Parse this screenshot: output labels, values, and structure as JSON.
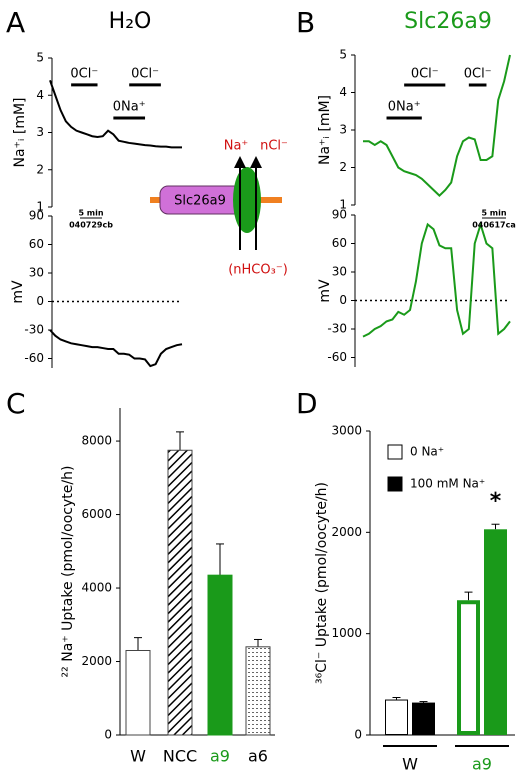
{
  "panel_labels": [
    "A",
    "B",
    "C",
    "D"
  ],
  "diagram": {
    "protein": "Slc26a9",
    "labels": [
      "Na⁺",
      "nCl⁻",
      "(nHCO₃⁻)"
    ]
  },
  "chart_data": [
    {
      "type": "line",
      "title": "H₂O",
      "ylabel": "Na⁺ᵢ [mM]",
      "ylim": [
        1,
        5
      ],
      "yticks": [
        1,
        2,
        3,
        4,
        5
      ],
      "color": "#000000",
      "values": [
        4.4,
        4.0,
        3.6,
        3.3,
        3.15,
        3.05,
        3.0,
        2.95,
        2.9,
        2.88,
        2.9,
        3.05,
        2.95,
        2.78,
        2.75,
        2.72,
        2.7,
        2.68,
        2.66,
        2.65,
        2.63,
        2.62,
        2.62,
        2.6,
        2.6,
        2.6
      ],
      "annotations": [
        {
          "text": "0Cl⁻",
          "start": 4,
          "end": 9,
          "level": 4.28
        },
        {
          "text": "0Cl⁻",
          "start": 15,
          "end": 21,
          "level": 4.28
        },
        {
          "text": "0Na⁺",
          "start": 12,
          "end": 18,
          "level": 3.39
        }
      ]
    },
    {
      "type": "line",
      "ylabel": "mV",
      "ylim": [
        -70,
        90
      ],
      "yticks": [
        -60,
        -30,
        0,
        30,
        60,
        90
      ],
      "zero_line": true,
      "color": "#000000",
      "values": [
        -30,
        -36,
        -40,
        -42,
        -44,
        -45,
        -46,
        -47,
        -48,
        -48,
        -49,
        -50,
        -50,
        -55,
        -55,
        -56,
        -60,
        -60,
        -61,
        -68,
        -66,
        -55,
        -50,
        -48,
        -46,
        -45
      ],
      "scale_bar": {
        "label": "5 min",
        "id": "040729cb"
      }
    },
    {
      "type": "line",
      "title": "Slc26a9",
      "ylabel": "Na⁺ᵢ [mM]",
      "ylim": [
        1,
        5
      ],
      "yticks": [
        1,
        2,
        3,
        4,
        5
      ],
      "color": "#1a9a1a",
      "values": [
        2.7,
        2.7,
        2.6,
        2.7,
        2.6,
        2.3,
        2.0,
        1.9,
        1.85,
        1.8,
        1.7,
        1.55,
        1.4,
        1.25,
        1.4,
        1.6,
        2.3,
        2.7,
        2.8,
        2.75,
        2.2,
        2.2,
        2.3,
        3.8,
        4.3,
        5.0
      ],
      "annotations": [
        {
          "text": "0Na⁺",
          "start": 4,
          "end": 10,
          "level": 3.32
        },
        {
          "text": "0Cl⁻",
          "start": 7,
          "end": 14,
          "level": 4.2
        },
        {
          "text": "0Cl⁻",
          "start": 18,
          "end": 21,
          "level": 4.2
        }
      ]
    },
    {
      "type": "line",
      "ylabel": "mV",
      "ylim": [
        -70,
        90
      ],
      "yticks": [
        -60,
        -30,
        0,
        30,
        60,
        90
      ],
      "zero_line": true,
      "color": "#1a9a1a",
      "values": [
        -38,
        -35,
        -30,
        -27,
        -22,
        -20,
        -12,
        -15,
        -10,
        20,
        60,
        80,
        75,
        58,
        55,
        55,
        -10,
        -35,
        -30,
        60,
        80,
        60,
        55,
        -35,
        -30,
        -22
      ],
      "scale_bar": {
        "label": "5 min",
        "id": "040617ca"
      }
    },
    {
      "type": "bar",
      "ylabel": "²² Na⁺ Uptake (pmol/oocyte/h)",
      "categories": [
        "W",
        "NCC",
        "a9",
        "a6"
      ],
      "values": [
        2300,
        7750,
        4350,
        2400
      ],
      "errors": [
        350,
        500,
        850,
        200
      ],
      "fills": [
        "#ffffff",
        "url(#hatch)",
        "#1a9a1a",
        "url(#dots)"
      ],
      "category_colors": [
        "#000000",
        "#000000",
        "#1a9a1a",
        "#000000"
      ],
      "ylim": [
        0,
        8900
      ],
      "yticks": [
        0,
        2000,
        4000,
        6000,
        8000
      ]
    },
    {
      "type": "groupedbar",
      "ylabel": "³⁶Cl⁻ Uptake (pmol/oocyte/h)",
      "categories": [
        "W",
        "a9"
      ],
      "category_colors": [
        "#000000",
        "#1a9a1a"
      ],
      "series": [
        {
          "name": "0 Na⁺",
          "filled": false,
          "values": [
            350,
            1330
          ],
          "errors": [
            20,
            80
          ]
        },
        {
          "name": "100 mM Na⁺",
          "filled": true,
          "values": [
            320,
            2030
          ],
          "errors": [
            10,
            50
          ]
        }
      ],
      "ylim": [
        0,
        3000
      ],
      "yticks": [
        0,
        1000,
        2000,
        3000
      ],
      "significance": "*"
    }
  ]
}
